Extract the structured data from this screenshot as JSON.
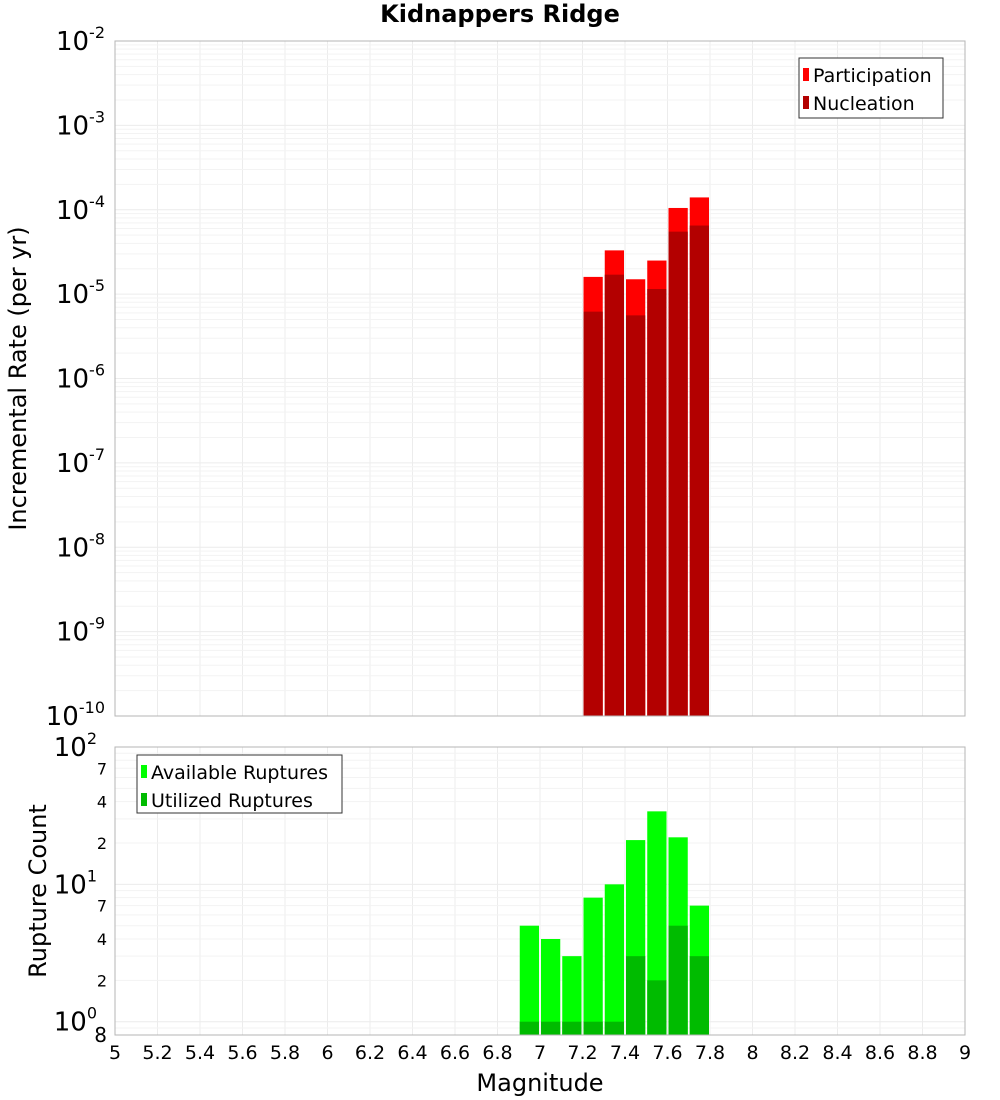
{
  "chart_data": [
    {
      "type": "bar",
      "title": "Kidnappers Ridge",
      "xlabel": "",
      "ylabel": "Incremental Rate (per yr)",
      "yscale": "log",
      "ylim": [
        1e-10,
        0.01
      ],
      "xlim": [
        5,
        9
      ],
      "bin_width": 0.1,
      "y_tick_exponents": [
        -10,
        -9,
        -8,
        -7,
        -6,
        -5,
        -4,
        -3,
        -2
      ],
      "legend_position": "top-right",
      "x": [
        7.25,
        7.35,
        7.45,
        7.55,
        7.65,
        7.75
      ],
      "series": [
        {
          "name": "Participation",
          "color": "#ff0000",
          "values": [
            1.6e-05,
            3.3e-05,
            1.5e-05,
            2.5e-05,
            0.000105,
            0.00014
          ]
        },
        {
          "name": "Nucleation",
          "color": "#b30000",
          "values": [
            6.2e-06,
            1.7e-05,
            5.6e-06,
            1.15e-05,
            5.5e-05,
            6.5e-05
          ]
        }
      ]
    },
    {
      "type": "bar",
      "title": "",
      "xlabel": "Magnitude",
      "ylabel": "Rupture Count",
      "yscale": "log",
      "ylim": [
        0.8,
        100
      ],
      "xlim": [
        5,
        9
      ],
      "bin_width": 0.1,
      "x_ticks": [
        "5",
        "5.2",
        "5.4",
        "5.6",
        "5.8",
        "6",
        "6.2",
        "6.4",
        "6.6",
        "6.8",
        "7",
        "7.2",
        "7.4",
        "7.6",
        "7.8",
        "8",
        "8.2",
        "8.4",
        "8.6",
        "8.8",
        "9"
      ],
      "y_major_ticks": [
        {
          "base": "10",
          "exp": "0"
        },
        {
          "base": "10",
          "exp": "1"
        },
        {
          "base": "10",
          "exp": "2"
        }
      ],
      "y_minor_labels": [
        "8",
        "2",
        "4",
        "7",
        "2",
        "4",
        "7"
      ],
      "legend_position": "top-left",
      "x": [
        6.95,
        7.05,
        7.15,
        7.25,
        7.35,
        7.45,
        7.55,
        7.65,
        7.75
      ],
      "series": [
        {
          "name": "Available Ruptures",
          "color": "#00ff00",
          "values": [
            5,
            4,
            3,
            8,
            10,
            21,
            34,
            22,
            7
          ]
        },
        {
          "name": "Utilized Ruptures",
          "color": "#00bb00",
          "values": [
            1,
            1,
            1,
            1,
            1,
            3,
            2,
            5,
            3
          ]
        }
      ]
    }
  ]
}
